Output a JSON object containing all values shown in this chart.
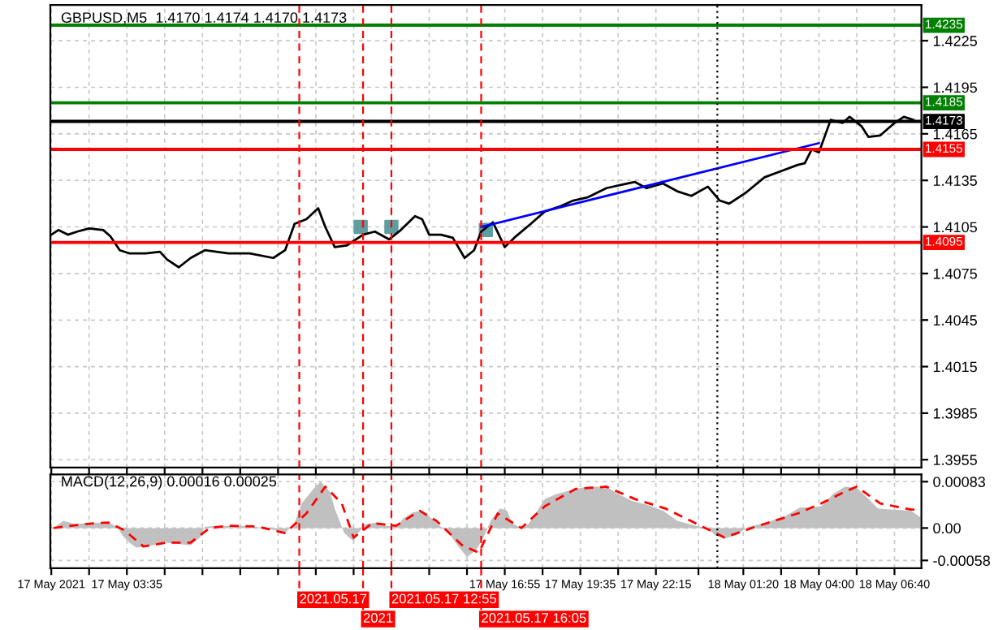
{
  "chart_data": [
    {
      "type": "line",
      "title": "GBPUSD,M5  1.4170 1.4174 1.4170 1.4173",
      "xlim": [
        "2021-05-17T00:53",
        "2021-05-18T07:37"
      ],
      "ylim": [
        1.395,
        1.4248
      ],
      "xticks": [
        {
          "value": "2021-05-17T00:55",
          "label": null
        },
        {
          "value": "2021-05-17T02:15",
          "label": null
        },
        {
          "value": "2021-05-17T03:35",
          "label": null
        },
        {
          "value": "2021-05-17T04:55",
          "label": null
        },
        {
          "value": "2021-05-17T06:15",
          "label": null
        },
        {
          "value": "2021-05-17T07:35",
          "label": null
        },
        {
          "value": "2021-05-17T08:55",
          "label": null
        },
        {
          "value": "2021-05-17T10:15",
          "label": null
        },
        {
          "value": "2021-05-17T11:35",
          "label": null
        },
        {
          "value": "2021-05-17T12:55",
          "label": null
        },
        {
          "value": "2021-05-17T14:15",
          "label": null
        },
        {
          "value": "2021-05-17T15:35",
          "label": null
        },
        {
          "value": "2021-05-17T16:55",
          "label": null
        },
        {
          "value": "2021-05-17T18:15",
          "label": null
        },
        {
          "value": "2021-05-17T19:35",
          "label": null
        },
        {
          "value": "2021-05-17T20:55",
          "label": null
        },
        {
          "value": "2021-05-17T22:15",
          "label": null
        },
        {
          "value": "2021-05-17T23:45",
          "label": null
        },
        {
          "value": "2021-05-18T01:20",
          "label": null
        },
        {
          "value": "2021-05-18T02:40",
          "label": null
        },
        {
          "value": "2021-05-18T04:00",
          "label": null
        },
        {
          "value": "2021-05-18T05:20",
          "label": null
        },
        {
          "value": "2021-05-18T06:40",
          "label": null
        }
      ],
      "yticks": [
        1.3955,
        1.3985,
        1.4015,
        1.4045,
        1.4075,
        1.4105,
        1.4135,
        1.4165,
        1.4195,
        1.4225
      ],
      "tick_labels": "y",
      "grid": true,
      "ref_lines": [
        {
          "axis": "y",
          "value": 1.4235,
          "label": "1.4235",
          "color": "#008000",
          "line_style": "solid"
        },
        {
          "axis": "y",
          "value": 1.4185,
          "label": "1.4185",
          "color": "#008000",
          "line_style": "solid"
        },
        {
          "axis": "y",
          "value": 1.4173,
          "label": "1.4173",
          "color": "#000000",
          "line_style": "solid"
        },
        {
          "axis": "y",
          "value": 1.4155,
          "label": "1.4155",
          "color": "#ff0000",
          "line_style": "solid"
        },
        {
          "axis": "y",
          "value": 1.4095,
          "label": "1.4095",
          "color": "#ff0000",
          "line_style": "solid"
        },
        {
          "axis": "x",
          "value": "2021-05-17T09:40",
          "color": "#ff0000",
          "line_style": "dashed"
        },
        {
          "axis": "x",
          "value": "2021-05-17T11:55",
          "color": "#ff0000",
          "line_style": "dashed"
        },
        {
          "axis": "x",
          "value": "2021-05-17T12:55",
          "color": "#ff0000",
          "line_style": "dashed"
        },
        {
          "axis": "x",
          "value": "2021-05-17T16:05",
          "color": "#ff0000",
          "line_style": "dashed"
        },
        {
          "axis": "x",
          "value": "2021-05-18T00:25",
          "color": "#000000",
          "line_style": "dotted"
        }
      ],
      "series": [
        {
          "color": "#000000",
          "x": [
            "2021-05-17T00:55",
            "2021-05-17T01:10",
            "2021-05-17T01:30",
            "2021-05-17T01:50",
            "2021-05-17T02:15",
            "2021-05-17T02:45",
            "2021-05-17T03:00",
            "2021-05-17T03:20",
            "2021-05-17T03:40",
            "2021-05-17T04:15",
            "2021-05-17T04:45",
            "2021-05-17T05:00",
            "2021-05-17T05:25",
            "2021-05-17T05:50",
            "2021-05-17T06:20",
            "2021-05-17T07:10",
            "2021-05-17T07:55",
            "2021-05-17T08:45",
            "2021-05-17T09:10",
            "2021-05-17T09:30",
            "2021-05-17T09:55",
            "2021-05-17T10:20",
            "2021-05-17T10:35",
            "2021-05-17T10:55",
            "2021-05-17T11:20",
            "2021-05-17T11:55",
            "2021-05-17T12:20",
            "2021-05-17T12:50",
            "2021-05-17T13:15",
            "2021-05-17T13:45",
            "2021-05-17T14:00",
            "2021-05-17T14:15",
            "2021-05-17T14:40",
            "2021-05-17T15:05",
            "2021-05-17T15:30",
            "2021-05-17T15:50",
            "2021-05-17T16:05",
            "2021-05-17T16:30",
            "2021-05-17T16:55",
            "2021-05-17T17:15",
            "2021-05-17T17:50",
            "2021-05-17T18:20",
            "2021-05-17T18:50",
            "2021-05-17T19:20",
            "2021-05-17T19:50",
            "2021-05-17T20:30",
            "2021-05-17T21:00",
            "2021-05-17T21:30",
            "2021-05-17T21:55",
            "2021-05-17T22:30",
            "2021-05-17T23:00",
            "2021-05-17T23:30",
            "2021-05-18T00:05",
            "2021-05-18T00:30",
            "2021-05-18T00:50",
            "2021-05-18T01:25",
            "2021-05-18T02:05",
            "2021-05-18T02:40",
            "2021-05-18T03:15",
            "2021-05-18T03:30",
            "2021-05-18T03:45",
            "2021-05-18T04:00",
            "2021-05-18T04:25",
            "2021-05-18T04:50",
            "2021-05-18T05:05",
            "2021-05-18T05:30",
            "2021-05-18T05:45",
            "2021-05-18T06:10",
            "2021-05-18T06:40",
            "2021-05-18T07:00",
            "2021-05-18T07:20"
          ],
          "values": [
            1.41,
            1.4103,
            1.41,
            1.4102,
            1.4104,
            1.4103,
            1.4099,
            1.409,
            1.4088,
            1.4088,
            1.4089,
            1.4084,
            1.4079,
            1.4085,
            1.409,
            1.4088,
            1.4088,
            1.4085,
            1.409,
            1.4107,
            1.411,
            1.4117,
            1.4105,
            1.4092,
            1.4093,
            1.41,
            1.4102,
            1.4097,
            1.4103,
            1.4112,
            1.411,
            1.41,
            1.41,
            1.4098,
            1.4085,
            1.409,
            1.4102,
            1.4108,
            1.4092,
            1.4098,
            1.4107,
            1.4115,
            1.4118,
            1.4122,
            1.4124,
            1.413,
            1.4132,
            1.4134,
            1.413,
            1.4133,
            1.4128,
            1.4125,
            1.4131,
            1.4122,
            1.412,
            1.4127,
            1.4137,
            1.4141,
            1.4145,
            1.4146,
            1.4155,
            1.4153,
            1.4174,
            1.4172,
            1.4176,
            1.417,
            1.4163,
            1.4164,
            1.4172,
            1.4176,
            1.4174
          ]
        },
        {
          "color": "#0000ff",
          "x": [
            "2021-05-17T16:05",
            "2021-05-18T04:00"
          ],
          "values": [
            1.4105,
            1.4159
          ]
        },
        {
          "type": "scatter",
          "color": "#5f9ea0",
          "marker": "square",
          "x": [
            "2021-05-17T11:50",
            "2021-05-17T12:55",
            "2021-05-17T16:15"
          ],
          "values": [
            1.4105,
            1.4105,
            1.4103
          ]
        }
      ]
    },
    {
      "type": "area",
      "title": "MACD(12,26,9) 0.00016 0.00025",
      "xlim": [
        "2021-05-17T00:53",
        "2021-05-18T07:37"
      ],
      "ylim": [
        -0.00072,
        0.00096
      ],
      "xticks": [
        {
          "value": "2021-05-17T00:55",
          "label": "17 May 2021"
        },
        {
          "value": "2021-05-17T02:15",
          "label": null
        },
        {
          "value": "2021-05-17T03:35",
          "label": "17 May 03:35"
        },
        {
          "value": "2021-05-17T04:55",
          "label": null
        },
        {
          "value": "2021-05-17T06:15",
          "label": null
        },
        {
          "value": "2021-05-17T07:35",
          "label": null
        },
        {
          "value": "2021-05-17T08:55",
          "label": null
        },
        {
          "value": "2021-05-17T10:15",
          "label": null
        },
        {
          "value": "2021-05-17T11:35",
          "label": null
        },
        {
          "value": "2021-05-17T12:55",
          "label": null
        },
        {
          "value": "2021-05-17T14:15",
          "label": null
        },
        {
          "value": "2021-05-17T15:35",
          "label": null
        },
        {
          "value": "2021-05-17T16:55",
          "label": "17 May 16:55"
        },
        {
          "value": "2021-05-17T18:15",
          "label": null
        },
        {
          "value": "2021-05-17T19:35",
          "label": "17 May 19:35"
        },
        {
          "value": "2021-05-17T20:55",
          "label": null
        },
        {
          "value": "2021-05-17T22:15",
          "label": "17 May 22:15"
        },
        {
          "value": "2021-05-17T23:45",
          "label": null
        },
        {
          "value": "2021-05-18T01:20",
          "label": "18 May 01:20"
        },
        {
          "value": "2021-05-18T02:40",
          "label": null
        },
        {
          "value": "2021-05-18T04:00",
          "label": "18 May 04:00"
        },
        {
          "value": "2021-05-18T05:20",
          "label": null
        },
        {
          "value": "2021-05-18T06:40",
          "label": "18 May 06:40"
        }
      ],
      "yticks": [
        -0.00058,
        {
          "value": 0,
          "label": "0.00"
        },
        0.00083
      ],
      "grid": true,
      "ref_lines": [
        {
          "axis": "x",
          "value": "2021-05-17T09:40",
          "label": "2021.05.17",
          "color": "#ff0000",
          "line_style": "dashed"
        },
        {
          "axis": "x",
          "value": "2021-05-17T11:55",
          "label": "2021",
          "color": "#ff0000",
          "line_style": "dashed"
        },
        {
          "axis": "x",
          "value": "2021-05-17T12:55",
          "label": "2021.05.17 12:55",
          "color": "#ff0000",
          "line_style": "dashed"
        },
        {
          "axis": "x",
          "value": "2021-05-17T16:05",
          "label": "2021.05.17 16:05",
          "color": "#ff0000",
          "line_style": "dashed"
        },
        {
          "axis": "x",
          "value": "2021-05-18T00:25",
          "color": "#000000",
          "line_style": "dotted"
        }
      ],
      "series": [
        {
          "color": "#c0c0c0",
          "x": [
            "2021-05-17T01:00",
            "2021-05-17T01:20",
            "2021-05-17T01:45",
            "2021-05-17T02:15",
            "2021-05-17T02:55",
            "2021-05-17T03:15",
            "2021-05-17T03:25",
            "2021-05-17T03:40",
            "2021-05-17T03:55",
            "2021-05-17T04:30",
            "2021-05-17T04:55",
            "2021-05-17T05:20",
            "2021-05-17T05:50",
            "2021-05-17T06:10",
            "2021-05-17T06:20",
            "2021-05-17T06:40",
            "2021-05-17T07:45",
            "2021-05-17T08:10",
            "2021-05-17T08:50",
            "2021-05-17T09:10",
            "2021-05-17T09:30",
            "2021-05-17T09:45",
            "2021-05-17T10:10",
            "2021-05-17T10:25",
            "2021-05-17T10:45",
            "2021-05-17T10:55",
            "2021-05-17T11:15",
            "2021-05-17T11:35",
            "2021-05-17T11:45",
            "2021-05-17T12:00",
            "2021-05-17T12:25",
            "2021-05-17T12:45",
            "2021-05-17T13:05",
            "2021-05-17T13:20",
            "2021-05-17T13:40",
            "2021-05-17T14:00",
            "2021-05-17T14:20",
            "2021-05-17T14:40",
            "2021-05-17T15:00",
            "2021-05-17T15:15",
            "2021-05-17T15:35",
            "2021-05-17T15:55",
            "2021-05-17T16:10",
            "2021-05-17T16:25",
            "2021-05-17T16:45",
            "2021-05-17T17:00",
            "2021-05-17T17:10",
            "2021-05-17T17:30",
            "2021-05-17T17:45",
            "2021-05-17T18:00",
            "2021-05-17T18:20",
            "2021-05-17T18:45",
            "2021-05-17T19:25",
            "2021-05-17T19:50",
            "2021-05-17T20:30",
            "2021-05-17T20:55",
            "2021-05-17T21:25",
            "2021-05-17T21:55",
            "2021-05-17T22:30",
            "2021-05-17T23:00",
            "2021-05-17T23:40",
            "2021-05-18T00:05",
            "2021-05-18T00:20",
            "2021-05-18T00:40",
            "2021-05-18T01:05",
            "2021-05-18T01:30",
            "2021-05-18T02:10",
            "2021-05-18T02:50",
            "2021-05-18T03:20",
            "2021-05-18T03:40",
            "2021-05-18T04:05",
            "2021-05-18T04:30",
            "2021-05-18T04:55",
            "2021-05-18T05:20",
            "2021-05-18T05:45",
            "2021-05-18T06:05",
            "2021-05-18T06:35",
            "2021-05-18T07:15",
            "2021-05-18T07:35"
          ],
          "values": [
            0,
            0.00013,
            7e-05,
            9e-05,
            0.0001,
            2e-05,
            -0.00013,
            -0.00026,
            -0.00035,
            -0.00031,
            -0.00026,
            -0.00028,
            -0.00031,
            -0.00017,
            2e-05,
            4e-05,
            4e-05,
            2e-05,
            -4e-05,
            -9e-05,
            9e-05,
            0.00044,
            0.0007,
            0.00083,
            0.00065,
            0.00035,
            -9e-05,
            -0.00024,
            -9e-05,
            7e-05,
            0.0001,
            4e-05,
            2e-05,
            0.00017,
            0.00028,
            0.00031,
            0.00017,
            2e-05,
            -0.00013,
            -0.00031,
            -0.00052,
            -0.00039,
            -0.00017,
            0.00013,
            0.00035,
            0.00031,
            9e-05,
            0,
            7e-05,
            0.00026,
            0.00052,
            0.00061,
            0.0007,
            0.00074,
            0.00074,
            0.00061,
            0.00048,
            0.00042,
            0.00031,
            0.00013,
            4e-05,
            0,
            -0.00013,
            -0.00019,
            -0.00013,
            2e-05,
            0.0001,
            0.00022,
            0.00037,
            0.00037,
            0.00039,
            0.00061,
            0.00074,
            0.00072,
            0.00052,
            0.00035,
            0.00033,
            0.00031,
            0.00019
          ]
        },
        {
          "type": "line",
          "color": "#ff0000",
          "line_style": "dashed",
          "x": [
            "2021-05-17T01:00",
            "2021-05-17T02:05",
            "2021-05-17T02:55",
            "2021-05-17T03:30",
            "2021-05-17T04:10",
            "2021-05-17T05:00",
            "2021-05-17T05:50",
            "2021-05-17T06:30",
            "2021-05-17T07:10",
            "2021-05-17T08:10",
            "2021-05-17T09:10",
            "2021-05-17T09:55",
            "2021-05-17T10:35",
            "2021-05-17T11:10",
            "2021-05-17T11:35",
            "2021-05-17T12:15",
            "2021-05-17T13:05",
            "2021-05-17T13:55",
            "2021-05-17T14:30",
            "2021-05-17T15:25",
            "2021-05-17T16:00",
            "2021-05-17T16:40",
            "2021-05-17T17:30",
            "2021-05-17T18:20",
            "2021-05-17T19:25",
            "2021-05-17T20:30",
            "2021-05-17T21:30",
            "2021-05-17T22:35",
            "2021-05-17T23:50",
            "2021-05-18T00:40",
            "2021-05-18T01:45",
            "2021-05-18T03:15",
            "2021-05-18T04:05",
            "2021-05-18T04:55",
            "2021-05-18T05:20",
            "2021-05-18T06:10",
            "2021-05-18T07:15",
            "2021-05-18T07:35"
          ],
          "values": [
            0,
            7e-05,
            0.0001,
            -4e-05,
            -0.00033,
            -0.00026,
            -0.00026,
            0,
            4e-05,
            3e-05,
            -9e-05,
            0.00026,
            0.00074,
            0.00044,
            -0.00017,
            9e-05,
            4e-05,
            0.00031,
            0.00013,
            -0.00031,
            -0.00044,
            0.00026,
            0,
            0.00039,
            0.0007,
            0.00074,
            0.00052,
            0.00035,
            4e-05,
            -0.00017,
            2e-05,
            0.00026,
            0.00044,
            0.00065,
            0.00074,
            0.00044,
            0.00033,
            0.00033
          ]
        }
      ]
    }
  ]
}
